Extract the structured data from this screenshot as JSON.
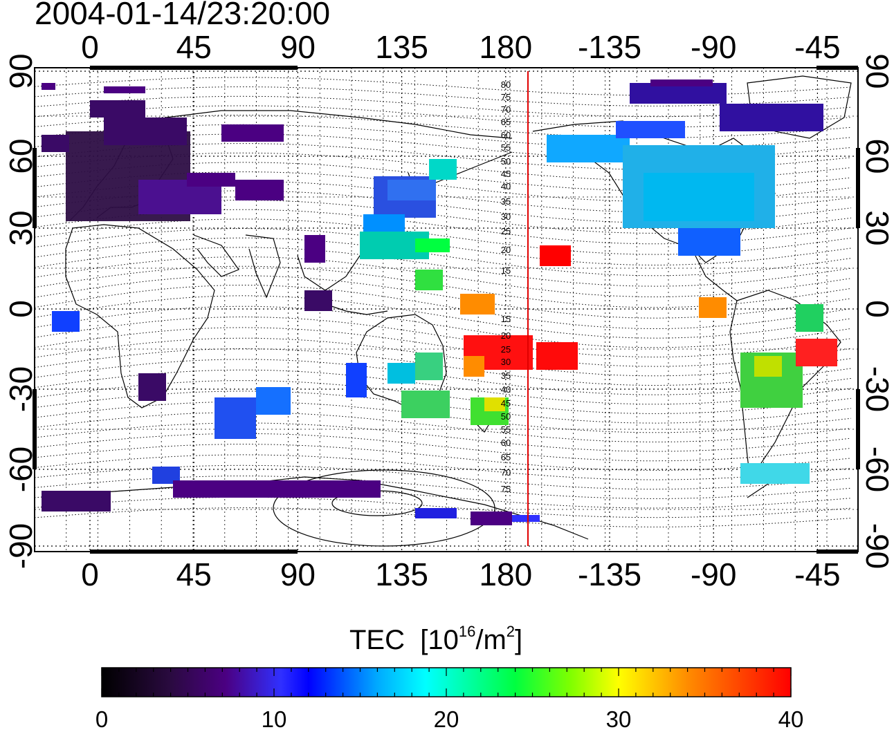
{
  "timestamp": "2004-01-14/23:20:00",
  "map": {
    "lon_ticks": [
      "0",
      "45",
      "90",
      "135",
      "180",
      "-135",
      "-90",
      "-45"
    ],
    "lat_ticks_left": [
      "90",
      "60",
      "30",
      "0",
      "-30",
      "-60",
      "-90"
    ],
    "lat_ticks_right": [
      "90",
      "60",
      "30",
      "0",
      "-30",
      "-60",
      "-90"
    ],
    "magnetic_lat_north": [
      "80",
      "75",
      "70",
      "65",
      "60",
      "55",
      "50",
      "45",
      "40",
      "35",
      "30",
      "25",
      "20",
      "15"
    ],
    "magnetic_lat_south": [
      "15",
      "20",
      "25",
      "30",
      "35",
      "40",
      "45",
      "50",
      "55",
      "60",
      "65",
      "70",
      "75"
    ],
    "terminator_line_color": "#e00000",
    "grid": "dotted"
  },
  "colorbar": {
    "title": "TEC",
    "units_base": "[10",
    "units_exp": "16",
    "units_mid": "/m",
    "units_exp2": "2",
    "units_close": "]",
    "ticks": [
      "0",
      "10",
      "20",
      "30",
      "40"
    ],
    "range": [
      0,
      40
    ],
    "colormap": [
      "#000000",
      "#3a0a4a",
      "#4b0082",
      "#0000ff",
      "#00bfff",
      "#00ffff",
      "#00ff00",
      "#ffff00",
      "#ff8c00",
      "#ff0000"
    ]
  }
}
